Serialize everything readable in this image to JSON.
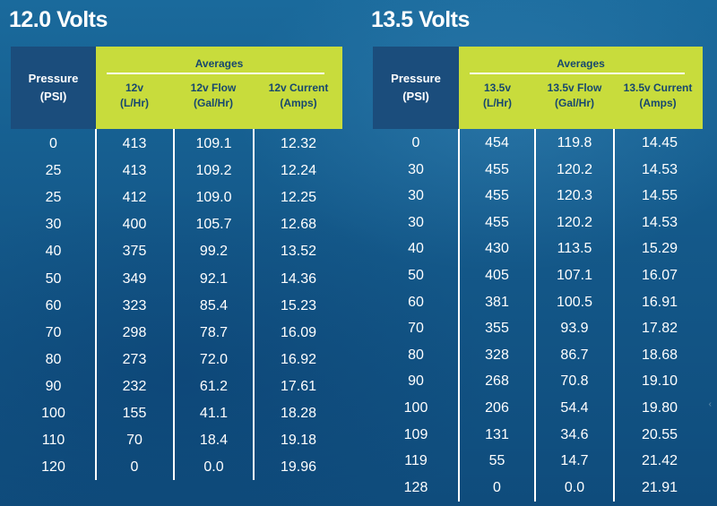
{
  "tables": [
    {
      "title": "12.0 Volts",
      "header": {
        "pressure": [
          "Pressure",
          "(PSI)"
        ],
        "averages": "Averages",
        "columns": [
          [
            "12v",
            "(L/Hr)"
          ],
          [
            "12v Flow",
            "(Gal/Hr)"
          ],
          [
            "12v Current",
            "(Amps)"
          ]
        ]
      },
      "rows": [
        [
          "0",
          "413",
          "109.1",
          "12.32"
        ],
        [
          "25",
          "413",
          "109.2",
          "12.24"
        ],
        [
          "25",
          "412",
          "109.0",
          "12.25"
        ],
        [
          "30",
          "400",
          "105.7",
          "12.68"
        ],
        [
          "40",
          "375",
          "99.2",
          "13.52"
        ],
        [
          "50",
          "349",
          "92.1",
          "14.36"
        ],
        [
          "60",
          "323",
          "85.4",
          "15.23"
        ],
        [
          "70",
          "298",
          "78.7",
          "16.09"
        ],
        [
          "80",
          "273",
          "72.0",
          "16.92"
        ],
        [
          "90",
          "232",
          "61.2",
          "17.61"
        ],
        [
          "100",
          "155",
          "41.1",
          "18.28"
        ],
        [
          "110",
          "70",
          "18.4",
          "19.18"
        ],
        [
          "120",
          "0",
          "0.0",
          "19.96"
        ]
      ]
    },
    {
      "title": "13.5 Volts",
      "header": {
        "pressure": [
          "Pressure",
          "(PSI)"
        ],
        "averages": "Averages",
        "columns": [
          [
            "13.5v",
            "(L/Hr)"
          ],
          [
            "13.5v Flow",
            "(Gal/Hr)"
          ],
          [
            "13.5v Current",
            "(Amps)"
          ]
        ]
      },
      "rows": [
        [
          "0",
          "454",
          "119.8",
          "14.45"
        ],
        [
          "30",
          "455",
          "120.2",
          "14.53"
        ],
        [
          "30",
          "455",
          "120.3",
          "14.55"
        ],
        [
          "30",
          "455",
          "120.2",
          "14.53"
        ],
        [
          "40",
          "430",
          "113.5",
          "15.29"
        ],
        [
          "50",
          "405",
          "107.1",
          "16.07"
        ],
        [
          "60",
          "381",
          "100.5",
          "16.91"
        ],
        [
          "70",
          "355",
          "93.9",
          "17.82"
        ],
        [
          "80",
          "328",
          "86.7",
          "18.68"
        ],
        [
          "90",
          "268",
          "70.8",
          "19.10"
        ],
        [
          "100",
          "206",
          "54.4",
          "19.80"
        ],
        [
          "109",
          "131",
          "34.6",
          "20.55"
        ],
        [
          "119",
          "55",
          "14.7",
          "21.42"
        ],
        [
          "128",
          "0",
          "0.0",
          "21.91"
        ]
      ]
    }
  ],
  "colors": {
    "background": "#14598a",
    "pressure_header": "#1b4d7c",
    "averages_header": "#c8dc3c",
    "header_text": "#17476f",
    "body_text": "#ffffff"
  }
}
